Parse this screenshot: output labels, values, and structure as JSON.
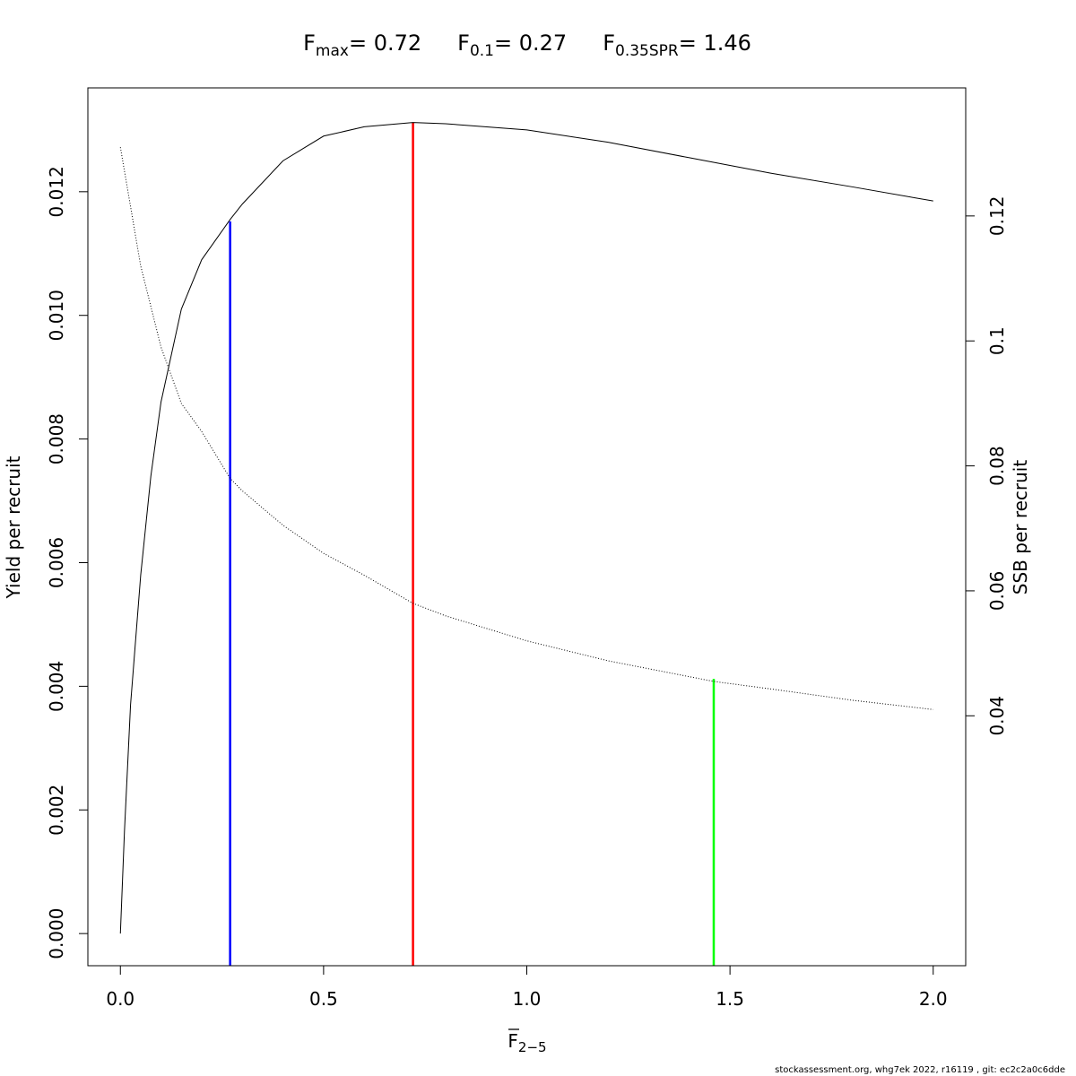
{
  "chart_data": {
    "type": "line",
    "title_parts": [
      {
        "main": "F",
        "sub": "max",
        "value": "= 0.72"
      },
      {
        "main": "F",
        "sub": "0.1",
        "value": "= 0.27"
      },
      {
        "main": "F",
        "sub": "0.35SPR",
        "value": "= 1.46"
      }
    ],
    "xlabel": {
      "main": "F",
      "sub": "2−5"
    },
    "ylabel_left": "Yield per recruit",
    "ylabel_right": "SSB per recruit",
    "xlim": [
      -0.08,
      2.08
    ],
    "ylim_left": [
      -0.00052,
      0.01368
    ],
    "ylim_right": [
      0.0,
      0.1405
    ],
    "x_ticks": [
      0.0,
      0.5,
      1.0,
      1.5,
      2.0
    ],
    "x_tick_labels": [
      "0.0",
      "0.5",
      "1.0",
      "1.5",
      "2.0"
    ],
    "y_left_ticks": [
      0.0,
      0.002,
      0.004,
      0.006,
      0.008,
      0.01,
      0.012
    ],
    "y_left_tick_labels": [
      "0.000",
      "0.002",
      "0.004",
      "0.006",
      "0.008",
      "0.010",
      "0.012"
    ],
    "y_right_ticks": [
      0.04,
      0.06,
      0.08,
      0.1,
      0.12
    ],
    "y_right_tick_labels": [
      "0.04",
      "0.06",
      "0.08",
      "0.1",
      "0.12"
    ],
    "series": [
      {
        "style": "solid",
        "axis": "left",
        "color": "#000000",
        "x": [
          0.0,
          0.01,
          0.025,
          0.05,
          0.075,
          0.1,
          0.15,
          0.2,
          0.27,
          0.3,
          0.4,
          0.5,
          0.6,
          0.72,
          0.8,
          1.0,
          1.2,
          1.4,
          1.6,
          1.8,
          2.0
        ],
        "y": [
          0.0,
          0.00165,
          0.0037,
          0.0058,
          0.0074,
          0.0086,
          0.0101,
          0.0109,
          0.01155,
          0.0118,
          0.0125,
          0.0129,
          0.01305,
          0.01312,
          0.0131,
          0.013,
          0.0128,
          0.01255,
          0.0123,
          0.01208,
          0.01185
        ]
      },
      {
        "style": "dotted",
        "axis": "right",
        "color": "#000000",
        "x": [
          0.0,
          0.05,
          0.1,
          0.15,
          0.2,
          0.27,
          0.3,
          0.4,
          0.5,
          0.6,
          0.72,
          0.8,
          1.0,
          1.2,
          1.46,
          1.6,
          1.8,
          2.0
        ],
        "y": [
          0.131,
          0.112,
          0.099,
          0.09,
          0.0855,
          0.078,
          0.076,
          0.0705,
          0.066,
          0.0625,
          0.058,
          0.056,
          0.052,
          0.0488,
          0.0455,
          0.0443,
          0.0425,
          0.041
        ]
      }
    ],
    "reference_lines": [
      {
        "x": 0.27,
        "y_top": 0.01152,
        "axis": "left",
        "color": "#0000ff"
      },
      {
        "x": 0.72,
        "y_top": 0.01312,
        "axis": "left",
        "color": "#ff0000"
      },
      {
        "x": 1.46,
        "y_top": 0.0459,
        "axis": "right",
        "color": "#00ff00"
      }
    ]
  },
  "footer": "stockassessment.org, whg7ek  2022, r16119 , git: ec2c2a0c6dde"
}
